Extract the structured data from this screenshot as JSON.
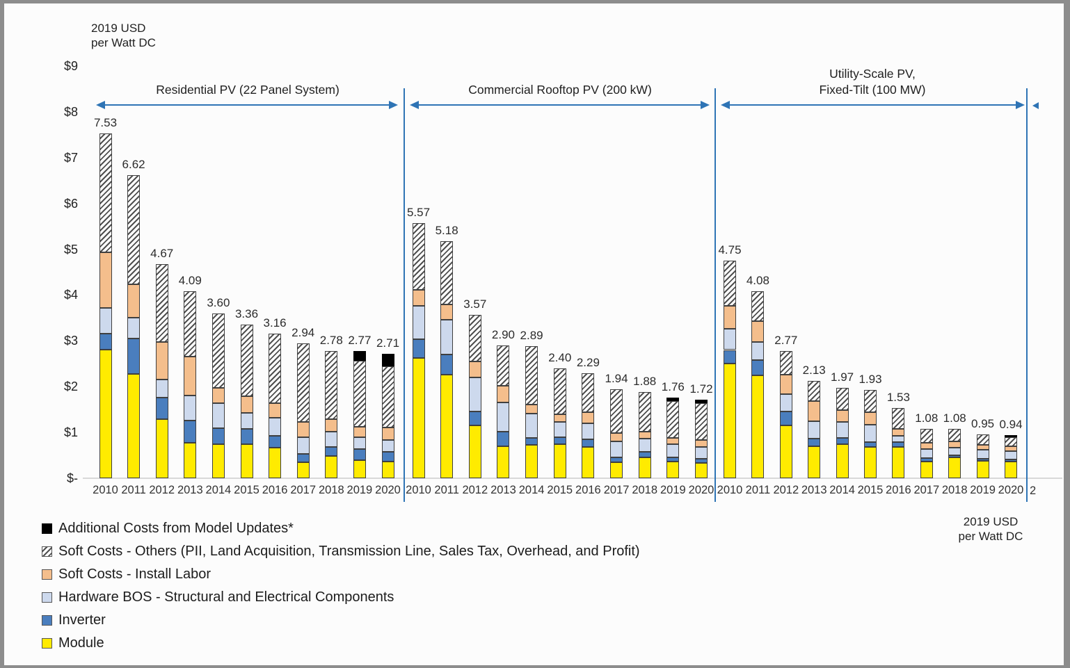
{
  "units_top_left": {
    "line1": "2019 USD",
    "line2": "per Watt DC"
  },
  "units_bottom_right": {
    "line1": "2019 USD",
    "line2": "per Watt DC"
  },
  "y_axis": {
    "tick_labels": [
      "$9",
      "$8",
      "$7",
      "$6",
      "$5",
      "$4",
      "$3",
      "$2",
      "$1",
      "$-"
    ],
    "min": 0,
    "max": 9
  },
  "sections": [
    {
      "title_lines": [
        "Residential PV (22 Panel System)"
      ]
    },
    {
      "title_lines": [
        "Commercial Rooftop PV (200 kW)"
      ]
    },
    {
      "title_lines": [
        "Utility-Scale PV,",
        "Fixed-Tilt (100 MW)"
      ]
    }
  ],
  "next_section_year_fragment": "2",
  "colors": {
    "module": "#ffeb00",
    "inverter": "#4a7ebe",
    "hardware_bos": "#cdd9ed",
    "install_labor": "#f4be8c",
    "soft_other_bg": "#ffffff",
    "soft_other_line": "#4f4f4f",
    "model_updates": "#000000",
    "arrow_blue": "#2e74b5",
    "axis_line": "#d9d9d9"
  },
  "legend": {
    "items": [
      {
        "key": "model_updates",
        "label": "Additional Costs from Model Updates*"
      },
      {
        "key": "soft_other",
        "label": "Soft Costs - Others (PII, Land Acquisition, Transmission Line, Sales Tax, Overhead, and Profit)"
      },
      {
        "key": "install_labor",
        "label": "Soft Costs - Install Labor"
      },
      {
        "key": "hardware_bos",
        "label": "Hardware BOS - Structural and Electrical Components"
      },
      {
        "key": "inverter",
        "label": "Inverter"
      },
      {
        "key": "module",
        "label": "Module"
      }
    ]
  },
  "chart_data": {
    "type": "bar",
    "stacked": true,
    "ylabel": "2019 USD per Watt DC",
    "ylim": [
      0,
      9
    ],
    "grid": false,
    "legend_position": "bottom-left",
    "categories": [
      "2010",
      "2011",
      "2012",
      "2013",
      "2014",
      "2015",
      "2016",
      "2017",
      "2018",
      "2019",
      "2020"
    ],
    "stack_order": [
      "module",
      "inverter",
      "hardware_bos",
      "install_labor",
      "soft_other",
      "model_updates"
    ],
    "series_labels": {
      "module": "Module",
      "inverter": "Inverter",
      "hardware_bos": "Hardware BOS - Structural and Electrical Components",
      "install_labor": "Soft Costs - Install Labor",
      "soft_other": "Soft Costs - Others (PII, Land Acquisition, Transmission Line, Sales Tax, Overhead, and Profit)",
      "model_updates": "Additional Costs from Model Updates*"
    },
    "groups": [
      {
        "name": "Residential PV (22 Panel System)",
        "totals": [
          7.53,
          6.62,
          4.67,
          4.09,
          3.6,
          3.36,
          3.16,
          2.94,
          2.78,
          2.77,
          2.71
        ],
        "series": {
          "module": [
            2.81,
            2.27,
            1.29,
            0.78,
            0.75,
            0.74,
            0.67,
            0.35,
            0.48,
            0.4,
            0.36
          ],
          "inverter": [
            0.35,
            0.78,
            0.47,
            0.48,
            0.34,
            0.33,
            0.25,
            0.18,
            0.21,
            0.23,
            0.22
          ],
          "hardware_bos": [
            0.56,
            0.45,
            0.39,
            0.54,
            0.55,
            0.36,
            0.4,
            0.36,
            0.32,
            0.26,
            0.26
          ],
          "install_labor": [
            1.21,
            0.74,
            0.83,
            0.86,
            0.33,
            0.36,
            0.32,
            0.34,
            0.28,
            0.24,
            0.27
          ],
          "soft_other": [
            2.6,
            2.38,
            1.69,
            1.43,
            1.63,
            1.57,
            1.52,
            1.71,
            1.49,
            1.43,
            1.34
          ],
          "model_updates": [
            0,
            0,
            0,
            0,
            0,
            0,
            0,
            0,
            0,
            0.21,
            0.26
          ]
        }
      },
      {
        "name": "Commercial Rooftop PV (200 kW)",
        "totals": [
          5.57,
          5.18,
          3.57,
          2.9,
          2.89,
          2.4,
          2.29,
          1.94,
          1.88,
          1.76,
          1.72
        ],
        "series": {
          "module": [
            2.63,
            2.26,
            1.16,
            0.7,
            0.73,
            0.74,
            0.69,
            0.35,
            0.45,
            0.37,
            0.34
          ],
          "inverter": [
            0.4,
            0.44,
            0.3,
            0.31,
            0.15,
            0.16,
            0.16,
            0.11,
            0.13,
            0.09,
            0.08
          ],
          "hardware_bos": [
            0.73,
            0.76,
            0.74,
            0.65,
            0.53,
            0.33,
            0.35,
            0.35,
            0.28,
            0.28,
            0.27
          ],
          "install_labor": [
            0.35,
            0.33,
            0.35,
            0.36,
            0.2,
            0.17,
            0.24,
            0.18,
            0.16,
            0.14,
            0.14
          ],
          "soft_other": [
            1.46,
            1.39,
            1.02,
            0.88,
            1.28,
            1.0,
            0.85,
            0.95,
            0.86,
            0.81,
            0.81
          ],
          "model_updates": [
            0,
            0,
            0,
            0,
            0,
            0,
            0,
            0,
            0,
            0.07,
            0.08
          ]
        }
      },
      {
        "name": "Utility-Scale PV, Fixed-Tilt (100 MW)",
        "totals": [
          4.75,
          4.08,
          2.77,
          2.13,
          1.97,
          1.93,
          1.53,
          1.08,
          1.08,
          0.95,
          0.94
        ],
        "series": {
          "module": [
            2.51,
            2.25,
            1.16,
            0.7,
            0.74,
            0.69,
            0.68,
            0.37,
            0.45,
            0.38,
            0.37
          ],
          "inverter": [
            0.29,
            0.33,
            0.3,
            0.16,
            0.14,
            0.1,
            0.11,
            0.07,
            0.05,
            0.04,
            0.04
          ],
          "hardware_bos": [
            0.46,
            0.4,
            0.37,
            0.38,
            0.35,
            0.38,
            0.14,
            0.2,
            0.17,
            0.2,
            0.18
          ],
          "install_labor": [
            0.51,
            0.45,
            0.43,
            0.44,
            0.25,
            0.27,
            0.14,
            0.13,
            0.13,
            0.11,
            0.11
          ],
          "soft_other": [
            0.98,
            0.65,
            0.51,
            0.45,
            0.49,
            0.49,
            0.46,
            0.31,
            0.28,
            0.22,
            0.19
          ],
          "model_updates": [
            0,
            0,
            0,
            0,
            0,
            0,
            0,
            0,
            0,
            0,
            0.05
          ]
        }
      }
    ]
  }
}
